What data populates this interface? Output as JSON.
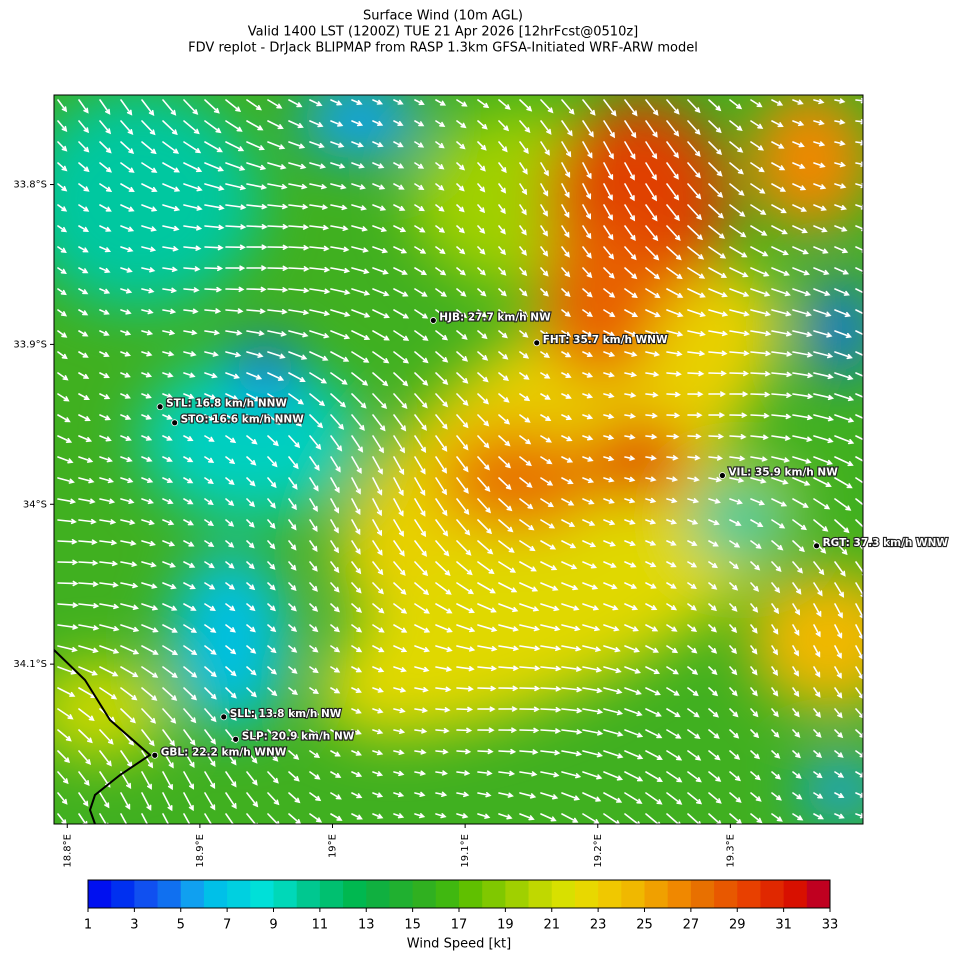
{
  "title": [
    "Surface Wind (10m AGL)",
    "Valid 1400 LST (1200Z) TUE 21 Apr 2026 [12hrFcst@0510z]",
    "FDV replot - DrJack BLIPMAP from RASP 1.3km GFSA-Initiated WRF-ARW model"
  ],
  "map": {
    "xlim": [
      18.79,
      19.4
    ],
    "ylim": [
      -34.2,
      -33.744
    ],
    "xticks": [
      {
        "value": 18.8,
        "label": "18.8°E"
      },
      {
        "value": 18.9,
        "label": "18.9°E"
      },
      {
        "value": 19.0,
        "label": "19°E"
      },
      {
        "value": 19.1,
        "label": "19.1°E"
      },
      {
        "value": 19.2,
        "label": "19.2°E"
      },
      {
        "value": 19.3,
        "label": "19.3°E"
      }
    ],
    "yticks": [
      {
        "value": -33.8,
        "label": "33.8°S"
      },
      {
        "value": -33.9,
        "label": "33.9°S"
      },
      {
        "value": -34.0,
        "label": "34°S"
      },
      {
        "value": -34.1,
        "label": "34.1°S"
      }
    ],
    "stations": [
      {
        "label": "HJB: 27.7 km/h NW",
        "lon": 19.076,
        "lat": -33.885
      },
      {
        "label": "FHT: 35.7 km/h WNW",
        "lon": 19.154,
        "lat": -33.899
      },
      {
        "label": "STL: 16.8 km/h NNW",
        "lon": 18.87,
        "lat": -33.939
      },
      {
        "label": "STO: 16.6 km/h NNW",
        "lon": 18.881,
        "lat": -33.949
      },
      {
        "label": "VIL: 35.9 km/h NW",
        "lon": 19.294,
        "lat": -33.982
      },
      {
        "label": "RGT: 37.3 km/h WNW",
        "lon": 19.365,
        "lat": -34.026
      },
      {
        "label": "SLL: 13.8 km/h NW",
        "lon": 18.918,
        "lat": -34.133
      },
      {
        "label": "SLP: 20.9 km/h NW",
        "lon": 18.927,
        "lat": -34.147
      },
      {
        "label": "GBL: 22.2 km/h WNW",
        "lon": 18.866,
        "lat": -34.157
      }
    ]
  },
  "colorbar": {
    "label": "Wind Speed [kt]",
    "lim": [
      1,
      33
    ],
    "ticks": [
      1,
      3,
      5,
      7,
      9,
      11,
      13,
      15,
      17,
      19,
      21,
      23,
      25,
      27,
      29,
      31,
      33
    ],
    "colors": [
      "#0010f0",
      "#0030f0",
      "#1050f0",
      "#1070f0",
      "#10a0f0",
      "#00c0e8",
      "#00d0e0",
      "#00e0d8",
      "#00d8b8",
      "#00c890",
      "#00c070",
      "#00b850",
      "#10b040",
      "#20b030",
      "#30b020",
      "#40b810",
      "#60c000",
      "#80c800",
      "#a0d000",
      "#c0d800",
      "#d8e000",
      "#e8d800",
      "#f0c800",
      "#f0b800",
      "#f0a000",
      "#f08800",
      "#e87000",
      "#e85800",
      "#e84000",
      "#e02800",
      "#d81000",
      "#c00020"
    ]
  }
}
